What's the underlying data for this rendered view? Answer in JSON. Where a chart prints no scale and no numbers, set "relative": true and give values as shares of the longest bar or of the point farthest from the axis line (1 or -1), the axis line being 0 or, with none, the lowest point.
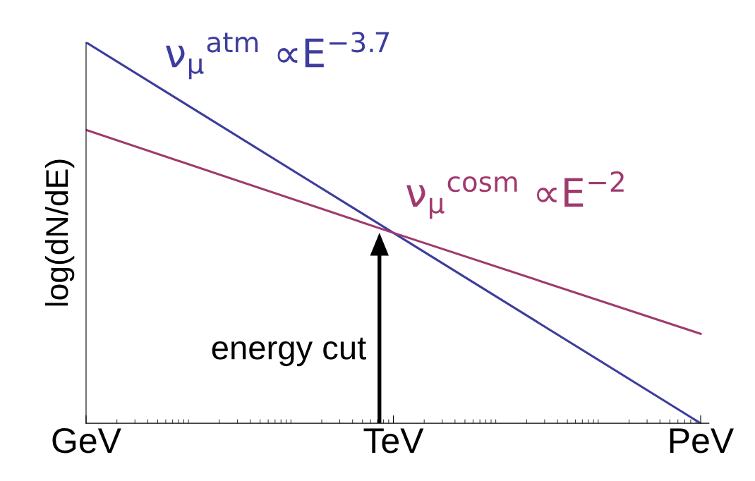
{
  "chart_data": {
    "type": "line",
    "relative": true,
    "ylabel": "log(dN/dE)",
    "tick_labels": "x",
    "grid": false,
    "legend": false,
    "marker": "none",
    "line_style": "solid",
    "categories": [
      "GeV",
      "TeV",
      "PeV"
    ],
    "series": [
      {
        "name": "ν$_{μ}$$^{atm}$ ∝E$^{−3.7}$",
        "color": "#3d3d9e",
        "values": [
          1,
          0.5,
          0
        ]
      },
      {
        "name": "ν$_{μ}$$^{cosm}$ ∝E$^{−2}$",
        "color": "#a03a6e",
        "values": [
          0.77,
          0.5,
          0.235
        ]
      }
    ],
    "annotations": [
      "energy cut"
    ]
  }
}
